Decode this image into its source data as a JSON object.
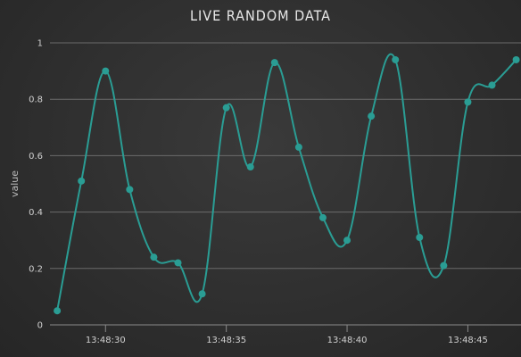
{
  "chart_data": {
    "type": "line",
    "title": "LIVE RANDOM DATA",
    "xlabel": "",
    "ylabel": "value",
    "ylim": [
      0,
      1
    ],
    "yticks": [
      "0",
      "0.2",
      "0.4",
      "0.6",
      "0.8",
      "1"
    ],
    "xlim": [
      "13:48:27.7",
      "13:48:47.2"
    ],
    "xticks": [
      {
        "t": "13:48:30",
        "label": "13:48:30"
      },
      {
        "t": "13:48:35",
        "label": "13:48:35"
      },
      {
        "t": "13:48:40",
        "label": "13:48:40"
      },
      {
        "t": "13:48:45",
        "label": "13:48:45"
      }
    ],
    "grid": true,
    "legend": "none",
    "series": [
      {
        "color": "#2a9d94",
        "points": [
          {
            "t": "13:48:28",
            "y": 0.05
          },
          {
            "t": "13:48:29",
            "y": 0.51
          },
          {
            "t": "13:48:30",
            "y": 0.9
          },
          {
            "t": "13:48:31",
            "y": 0.48
          },
          {
            "t": "13:48:32",
            "y": 0.24
          },
          {
            "t": "13:48:33",
            "y": 0.22
          },
          {
            "t": "13:48:34",
            "y": 0.11
          },
          {
            "t": "13:48:35",
            "y": 0.77
          },
          {
            "t": "13:48:36",
            "y": 0.56
          },
          {
            "t": "13:48:37",
            "y": 0.93
          },
          {
            "t": "13:48:38",
            "y": 0.63
          },
          {
            "t": "13:48:39",
            "y": 0.38
          },
          {
            "t": "13:48:40",
            "y": 0.3
          },
          {
            "t": "13:48:41",
            "y": 0.74
          },
          {
            "t": "13:48:42",
            "y": 0.94
          },
          {
            "t": "13:48:43",
            "y": 0.31
          },
          {
            "t": "13:48:44",
            "y": 0.21
          },
          {
            "t": "13:48:45",
            "y": 0.79
          },
          {
            "t": "13:48:46",
            "y": 0.85
          },
          {
            "t": "13:48:47",
            "y": 0.94
          }
        ]
      }
    ]
  }
}
